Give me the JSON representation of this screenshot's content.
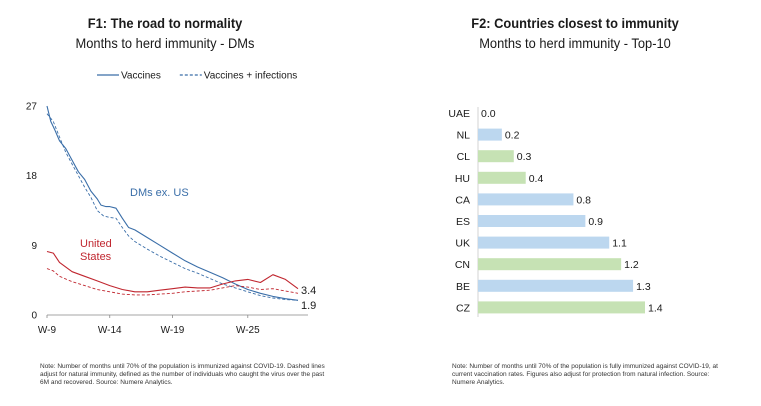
{
  "chart_data": [
    {
      "type": "line",
      "title": "F1: The road to normality",
      "subtitle": "Months to herd immunity - DMs",
      "legend": {
        "placement": "top",
        "entries": [
          {
            "label": "Vaccines",
            "style": "solid"
          },
          {
            "label": "Vaccines + infections",
            "style": "dashed"
          }
        ]
      },
      "x_ticks": [
        "W-9",
        "W-14",
        "W-19",
        "W-25"
      ],
      "xlim": [
        -9,
        -29
      ],
      "y_ticks": [
        0,
        9,
        18,
        27
      ],
      "ylim": [
        0,
        27
      ],
      "grid": false,
      "colors": {
        "dms": "#3a6ea8",
        "us": "#c0262f"
      },
      "series": [
        {
          "name": "DMs ex. US",
          "line": "solid",
          "color": "#3a6ea8",
          "x": [
            -9,
            -9.3,
            -9.6,
            -10,
            -10.5,
            -11,
            -11.5,
            -12,
            -12.5,
            -13,
            -13.3,
            -13.7,
            -14,
            -14.5,
            -15,
            -15.5,
            -16,
            -17,
            -18,
            -19,
            -20,
            -21,
            -22,
            -23,
            -24,
            -25,
            -26,
            -27,
            -28,
            -29
          ],
          "values": [
            27,
            25,
            24,
            22.5,
            21.5,
            20,
            18.5,
            17.5,
            16,
            15,
            14.2,
            14,
            14,
            13.8,
            12.5,
            11.3,
            11,
            10,
            9,
            8,
            7,
            6.2,
            5.5,
            4.8,
            4,
            3.3,
            2.8,
            2.4,
            2.1,
            1.9
          ]
        },
        {
          "name": "",
          "line": "dashed",
          "color": "#3a6ea8",
          "x": [
            -9,
            -9.5,
            -10,
            -10.5,
            -11,
            -11.5,
            -12,
            -12.5,
            -13,
            -13.5,
            -14,
            -14.5,
            -15,
            -15.5,
            -16,
            -17,
            -18,
            -19,
            -20,
            -21,
            -22,
            -23,
            -24,
            -25,
            -26,
            -27,
            -28,
            -29
          ],
          "values": [
            26,
            25,
            23,
            21,
            19.5,
            18,
            16.5,
            15.2,
            13.5,
            12.8,
            12.6,
            12.5,
            11.3,
            10.2,
            9.5,
            8.5,
            7.6,
            6.8,
            6,
            5.4,
            4.7,
            4,
            3.5,
            3,
            2.5,
            2.2,
            2,
            1.9
          ]
        },
        {
          "name": "United States",
          "line": "solid",
          "color": "#c0262f",
          "x": [
            -9,
            -9.5,
            -10,
            -11,
            -12,
            -13,
            -14,
            -15,
            -16,
            -17,
            -18,
            -19,
            -20,
            -21,
            -22,
            -23,
            -24,
            -25,
            -26,
            -27,
            -28,
            -29
          ],
          "values": [
            8.2,
            8,
            6.8,
            5.6,
            5,
            4.4,
            3.8,
            3.3,
            3,
            3,
            3.2,
            3.4,
            3.6,
            3.5,
            3.5,
            4,
            4.4,
            4.6,
            4.2,
            5.2,
            4.6,
            3.4
          ]
        },
        {
          "name": "",
          "line": "dashed",
          "color": "#c0262f",
          "x": [
            -9,
            -9.5,
            -10,
            -11,
            -12,
            -13,
            -14,
            -15,
            -16,
            -17,
            -18,
            -19,
            -20,
            -21,
            -22,
            -23,
            -24,
            -25,
            -26,
            -27,
            -28,
            -29
          ],
          "values": [
            6,
            5.7,
            5,
            4.3,
            3.8,
            3.3,
            3,
            2.7,
            2.6,
            2.6,
            2.7,
            2.8,
            3,
            3.1,
            3.2,
            3.5,
            3.8,
            3.6,
            3.3,
            3.4,
            3.1,
            2.8
          ]
        }
      ],
      "annotations": [
        {
          "text": "DMs ex. US",
          "series": 0
        },
        {
          "text": "United States",
          "series": 2
        },
        {
          "text": "3.4",
          "series": 2
        },
        {
          "text": "1.9",
          "series": 0
        }
      ],
      "note": "Note: Number of months until 70% of the population is immunized against COVID-19. Dashed lines adjust for natural immunity, defined as the number of individuals who caught the virus over the past 6M and recovered. Source: Numere Analytics."
    },
    {
      "type": "bar",
      "orientation": "horizontal",
      "title": "F2: Countries closest to immunity",
      "subtitle": "Months to herd immunity - Top-10",
      "categories": [
        "UAE",
        "NL",
        "CL",
        "HU",
        "CA",
        "ES",
        "UK",
        "CN",
        "BE",
        "CZ"
      ],
      "values": [
        0.0,
        0.2,
        0.3,
        0.4,
        0.8,
        0.9,
        1.1,
        1.2,
        1.3,
        1.4
      ],
      "value_labels": [
        "0.0",
        "0.2",
        "0.3",
        "0.4",
        "0.8",
        "0.9",
        "1.1",
        "1.2",
        "1.3",
        "1.4"
      ],
      "bar_colors": [
        "#bcd7ef",
        "#bcd7ef",
        "#c6e2b4",
        "#c6e2b4",
        "#bcd7ef",
        "#bcd7ef",
        "#bcd7ef",
        "#c6e2b4",
        "#bcd7ef",
        "#c6e2b4"
      ],
      "xlim": [
        0,
        1.4
      ],
      "grid": false,
      "note": "Note: Number of months until 70% of the population is fully immunized against COVID-19, at current vaccination rates. Figures also adjust for protection from natural infection. Source: Numere Analytics."
    }
  ]
}
